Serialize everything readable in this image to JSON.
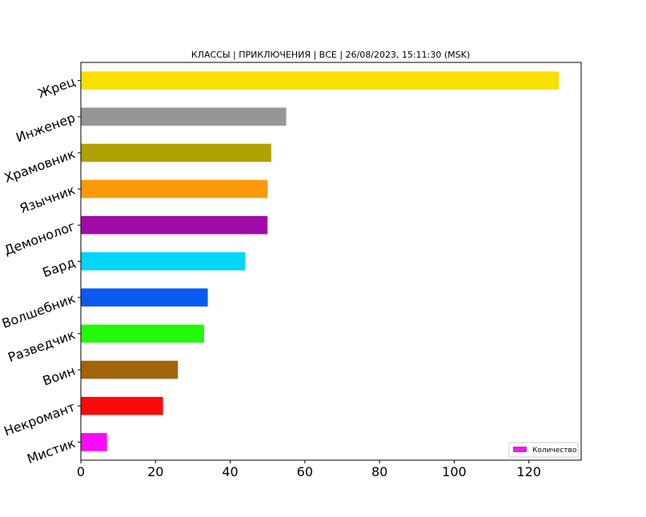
{
  "chart_data": {
    "type": "bar",
    "orientation": "horizontal",
    "title": "КЛАССЫ | ПРИКЛЮЧЕНИЯ | ВСЕ | 26/08/2023, 15:11:30 (MSK)",
    "xlabel": "",
    "ylabel": "",
    "xlim": [
      0,
      134
    ],
    "xticks": [
      0,
      20,
      40,
      60,
      80,
      100,
      120
    ],
    "categories": [
      "Жрец",
      "Инженер",
      "Храмовник",
      "Язычник",
      "Демонолог",
      "Бард",
      "Волшебник",
      "Разведчик",
      "Воин",
      "Некромант",
      "Мистик"
    ],
    "series": [
      {
        "name": "Количество",
        "values": [
          128,
          55,
          51,
          50,
          50,
          44,
          34,
          33,
          26,
          22,
          7
        ],
        "colors": [
          "#f9e000",
          "#969696",
          "#b0a000",
          "#fa9a0a",
          "#a00aa6",
          "#00d6fa",
          "#0a5af0",
          "#22fa0a",
          "#a0640a",
          "#fa0a0a",
          "#fa0afa"
        ]
      }
    ],
    "grid": false,
    "legend": {
      "position": "bottom-right",
      "label": "Количество",
      "swatch_color": "#e61ee6"
    }
  }
}
